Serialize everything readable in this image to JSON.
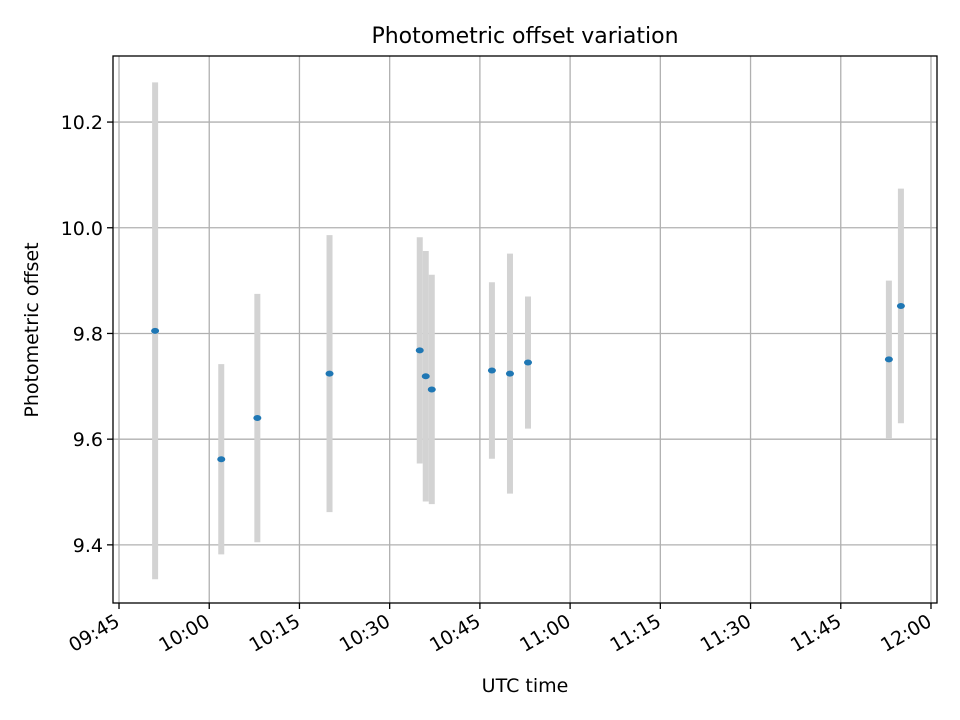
{
  "chart_data": {
    "type": "scatter",
    "title": "Photometric offset variation",
    "xlabel": "UTC time",
    "ylabel": "Photometric offset",
    "xlim": [
      "09:44",
      "12:01"
    ],
    "ylim": [
      9.29,
      10.325
    ],
    "x_ticks": [
      "09:45",
      "10:00",
      "10:15",
      "10:30",
      "10:45",
      "11:00",
      "11:15",
      "11:30",
      "11:45",
      "12:00"
    ],
    "y_ticks": [
      9.4,
      9.6,
      9.8,
      10.0,
      10.2
    ],
    "y_tick_labels": [
      "9.4",
      "9.6",
      "9.8",
      "10.0",
      "10.2"
    ],
    "grid": true,
    "colors": {
      "points": "#1f77b4",
      "error_bars": "#d3d3d3",
      "grid": "#b0b0b0"
    },
    "series": [
      {
        "points": [
          {
            "x": "09:51",
            "y": 9.805,
            "ylow": 9.335,
            "yhigh": 10.275
          },
          {
            "x": "10:02",
            "y": 9.562,
            "ylow": 9.382,
            "yhigh": 9.742
          },
          {
            "x": "10:08",
            "y": 9.64,
            "ylow": 9.405,
            "yhigh": 9.875
          },
          {
            "x": "10:20",
            "y": 9.724,
            "ylow": 9.462,
            "yhigh": 9.986
          },
          {
            "x": "10:35",
            "y": 9.768,
            "ylow": 9.554,
            "yhigh": 9.982
          },
          {
            "x": "10:36",
            "y": 9.719,
            "ylow": 9.482,
            "yhigh": 9.956
          },
          {
            "x": "10:37",
            "y": 9.694,
            "ylow": 9.477,
            "yhigh": 9.911
          },
          {
            "x": "10:47",
            "y": 9.73,
            "ylow": 9.563,
            "yhigh": 9.897
          },
          {
            "x": "10:50",
            "y": 9.724,
            "ylow": 9.497,
            "yhigh": 9.951
          },
          {
            "x": "10:53",
            "y": 9.745,
            "ylow": 9.62,
            "yhigh": 9.87
          },
          {
            "x": "11:53",
            "y": 9.751,
            "ylow": 9.602,
            "yhigh": 9.9
          },
          {
            "x": "11:55",
            "y": 9.852,
            "ylow": 9.63,
            "yhigh": 10.074
          }
        ]
      }
    ]
  }
}
